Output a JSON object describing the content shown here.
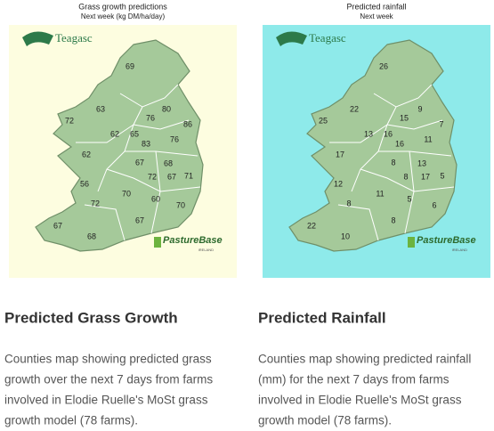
{
  "panels": [
    {
      "map_title": "Grass growth predictions",
      "map_subtitle": "Next week (kg DM/ha/day)",
      "logo": "Teagasc",
      "badge": "PastureBase",
      "badge_sub": "IRELAND",
      "values": [
        69,
        63,
        72,
        80,
        76,
        86,
        62,
        65,
        83,
        76,
        62,
        67,
        68,
        72,
        56,
        67,
        71,
        70,
        72,
        60,
        70,
        67,
        67,
        68
      ],
      "heading": "Predicted Grass Growth",
      "description_lines": [
        "Counties map showing predicted grass",
        "growth over the next 7 days from farms",
        "involved in Elodie Ruelle's MoSt grass",
        "growth model (78 farms)."
      ]
    },
    {
      "map_title": "Predicted rainfall",
      "map_subtitle": "Next week",
      "logo": "Teagasc",
      "badge": "PastureBase",
      "badge_sub": "IRELAND",
      "values": [
        26,
        22,
        25,
        9,
        15,
        7,
        13,
        16,
        16,
        11,
        17,
        8,
        13,
        8,
        12,
        17,
        5,
        11,
        8,
        5,
        6,
        22,
        8,
        10
      ],
      "heading": "Predicted Rainfall",
      "description_lines": [
        "Counties map showing predicted rainfall",
        "(mm) for the next 7 days from farms",
        "involved in Elodie Ruelle's MoSt grass",
        "growth model (78 farms)."
      ]
    }
  ]
}
